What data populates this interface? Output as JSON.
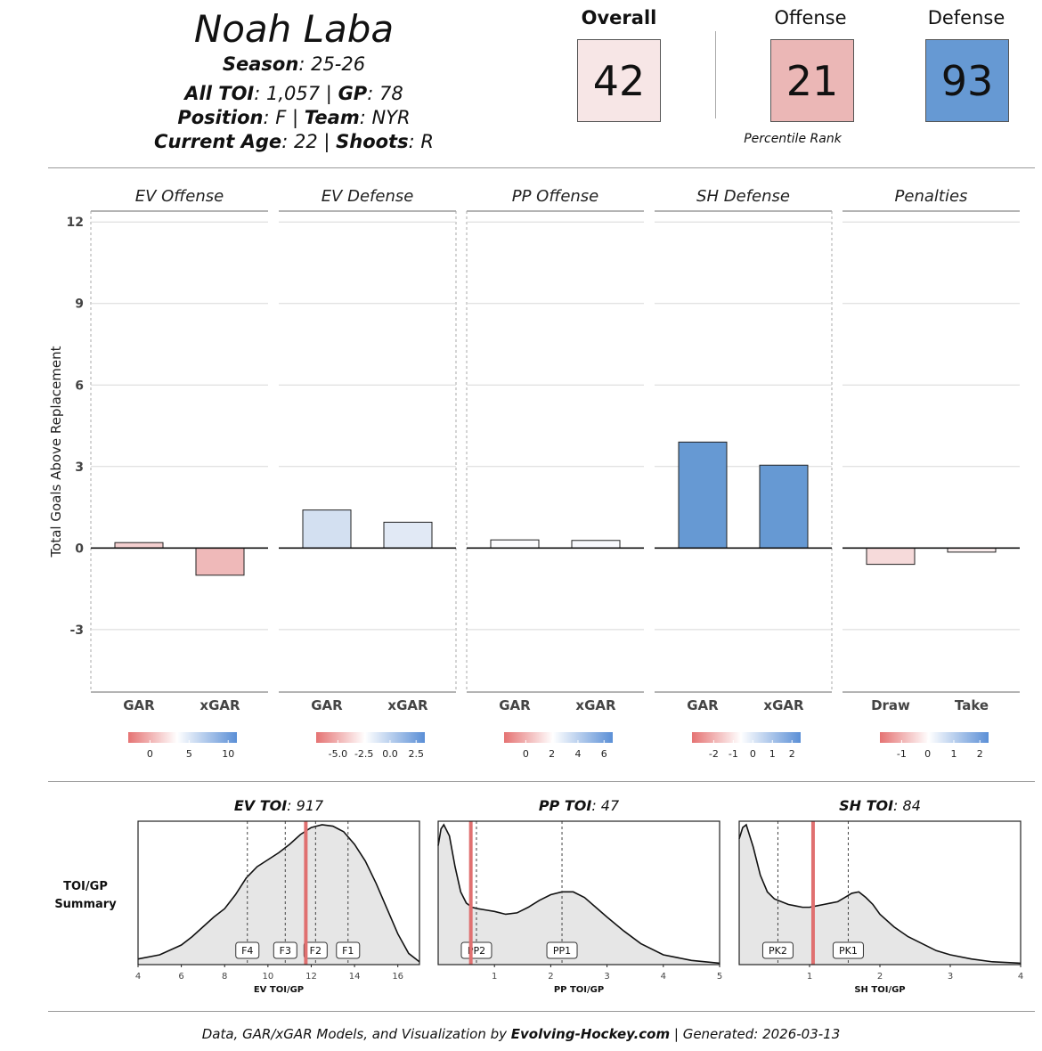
{
  "player": {
    "name": "Noah Laba",
    "season_label": "Season",
    "season": "25-26",
    "toi_label": "All TOI",
    "toi": "1,057",
    "gp_label": "GP",
    "gp": "78",
    "position_label": "Position",
    "position": "F",
    "team_label": "Team",
    "team": "NYR",
    "age_label": "Current Age",
    "age": "22",
    "shoots_label": "Shoots",
    "shoots": "R"
  },
  "scores": {
    "overall": {
      "label": "Overall",
      "value": "42",
      "color": "#f7e6e6"
    },
    "offense": {
      "label": "Offense",
      "value": "21",
      "color": "#ebb7b6"
    },
    "defense": {
      "label": "Defense",
      "value": "93",
      "color": "#6699d3"
    },
    "percentile_label": "Percentile Rank"
  },
  "chart_data": [
    {
      "type": "bar",
      "ylabel": "Total Goals Above Replacement",
      "ylim": [
        -5.3,
        12.4
      ],
      "yticks": [
        -3,
        0,
        3,
        6,
        9,
        12
      ],
      "grid": true,
      "panels": [
        {
          "title": "EV Offense",
          "categories": [
            "GAR",
            "xGAR"
          ],
          "values": [
            0.2,
            -1.0
          ],
          "colors": [
            "#f4cfcf",
            "#efb9b9"
          ],
          "legend": {
            "ticks": [
              "0",
              "5",
              "10"
            ]
          }
        },
        {
          "title": "EV Defense",
          "categories": [
            "GAR",
            "xGAR"
          ],
          "values": [
            1.4,
            0.95
          ],
          "colors": [
            "#d3e0f1",
            "#e1e9f5"
          ],
          "legend": {
            "ticks": [
              "-5.0",
              "-2.5",
              "0.0",
              "2.5"
            ]
          }
        },
        {
          "title": "PP Offense",
          "categories": [
            "GAR",
            "xGAR"
          ],
          "values": [
            0.3,
            0.28
          ],
          "colors": [
            "#fbfbfd",
            "#f7f8fc"
          ],
          "legend": {
            "ticks": [
              "0",
              "2",
              "4",
              "6"
            ]
          }
        },
        {
          "title": "SH Defense",
          "categories": [
            "GAR",
            "xGAR"
          ],
          "values": [
            3.9,
            3.05
          ],
          "colors": [
            "#6699d3",
            "#6699d3"
          ],
          "legend": {
            "ticks": [
              "-2",
              "-1",
              "0",
              "1",
              "2"
            ]
          }
        },
        {
          "title": "Penalties",
          "categories": [
            "Draw",
            "Take"
          ],
          "values": [
            -0.6,
            -0.15
          ],
          "colors": [
            "#f6dada",
            "#fbeeee"
          ],
          "legend": {
            "ticks": [
              "-1",
              "0",
              "1",
              "2"
            ]
          }
        }
      ]
    },
    {
      "type": "area",
      "side_label_1": "TOI/GP",
      "side_label_2": "Summary",
      "panels": [
        {
          "title_bold": "EV TOI",
          "title_value": "917",
          "xlabel": "EV TOI/GP",
          "xlim": [
            4,
            17
          ],
          "xticks": [
            "4",
            "6",
            "8",
            "10",
            "12",
            "14",
            "16"
          ],
          "density_x": [
            4,
            5,
            6,
            6.5,
            7,
            7.5,
            8,
            8.5,
            9,
            9.5,
            10,
            10.5,
            11,
            11.5,
            12,
            12.5,
            13,
            13.5,
            14,
            14.5,
            15,
            15.5,
            16,
            16.5,
            17
          ],
          "density_y": [
            0.04,
            0.07,
            0.14,
            0.2,
            0.27,
            0.34,
            0.4,
            0.5,
            0.62,
            0.7,
            0.75,
            0.8,
            0.86,
            0.93,
            0.98,
            1.0,
            0.99,
            0.95,
            0.86,
            0.74,
            0.58,
            0.4,
            0.22,
            0.08,
            0.02
          ],
          "player_value": 11.75,
          "markers": [
            {
              "label": "F4",
              "x": 9.05
            },
            {
              "label": "F3",
              "x": 10.8
            },
            {
              "label": "F2",
              "x": 12.2
            },
            {
              "label": "F1",
              "x": 13.7
            }
          ]
        },
        {
          "title_bold": "PP TOI",
          "title_value": "47",
          "xlabel": "PP TOI/GP",
          "xlim": [
            0,
            5
          ],
          "xticks": [
            "1",
            "2",
            "3",
            "4",
            "5"
          ],
          "density_x": [
            0,
            0.05,
            0.1,
            0.2,
            0.3,
            0.4,
            0.5,
            0.6,
            0.7,
            0.85,
            1.0,
            1.2,
            1.4,
            1.6,
            1.8,
            2.0,
            2.2,
            2.4,
            2.6,
            2.8,
            3.0,
            3.3,
            3.6,
            4.0,
            4.5,
            5.0
          ],
          "density_y": [
            0.85,
            0.97,
            1.0,
            0.92,
            0.7,
            0.52,
            0.44,
            0.41,
            0.4,
            0.39,
            0.38,
            0.36,
            0.37,
            0.41,
            0.46,
            0.5,
            0.52,
            0.52,
            0.48,
            0.41,
            0.34,
            0.24,
            0.15,
            0.07,
            0.03,
            0.01
          ],
          "player_value": 0.58,
          "markers": [
            {
              "label": "PP2",
              "x": 0.68
            },
            {
              "label": "PP1",
              "x": 2.2
            }
          ]
        },
        {
          "title_bold": "SH TOI",
          "title_value": "84",
          "xlabel": "SH TOI/GP",
          "xlim": [
            0,
            4
          ],
          "xticks": [
            "1",
            "2",
            "3",
            "4"
          ],
          "density_x": [
            0,
            0.05,
            0.1,
            0.2,
            0.3,
            0.4,
            0.5,
            0.6,
            0.7,
            0.8,
            0.9,
            1.0,
            1.1,
            1.2,
            1.3,
            1.4,
            1.5,
            1.6,
            1.7,
            1.8,
            1.9,
            2.0,
            2.2,
            2.4,
            2.6,
            2.8,
            3.0,
            3.3,
            3.6,
            4.0
          ],
          "density_y": [
            0.9,
            0.98,
            1.0,
            0.84,
            0.64,
            0.52,
            0.47,
            0.45,
            0.43,
            0.42,
            0.41,
            0.41,
            0.42,
            0.43,
            0.44,
            0.45,
            0.48,
            0.51,
            0.52,
            0.48,
            0.43,
            0.36,
            0.27,
            0.2,
            0.15,
            0.1,
            0.07,
            0.04,
            0.02,
            0.01
          ],
          "player_value": 1.05,
          "markers": [
            {
              "label": "PK2",
              "x": 0.55
            },
            {
              "label": "PK1",
              "x": 1.55
            }
          ]
        }
      ]
    }
  ],
  "footer": {
    "prefix": "Data, GAR/xGAR Models, and Visualization by ",
    "brand": "Evolving-Hockey.com",
    "suffix": " | Generated: 2026-03-13"
  }
}
